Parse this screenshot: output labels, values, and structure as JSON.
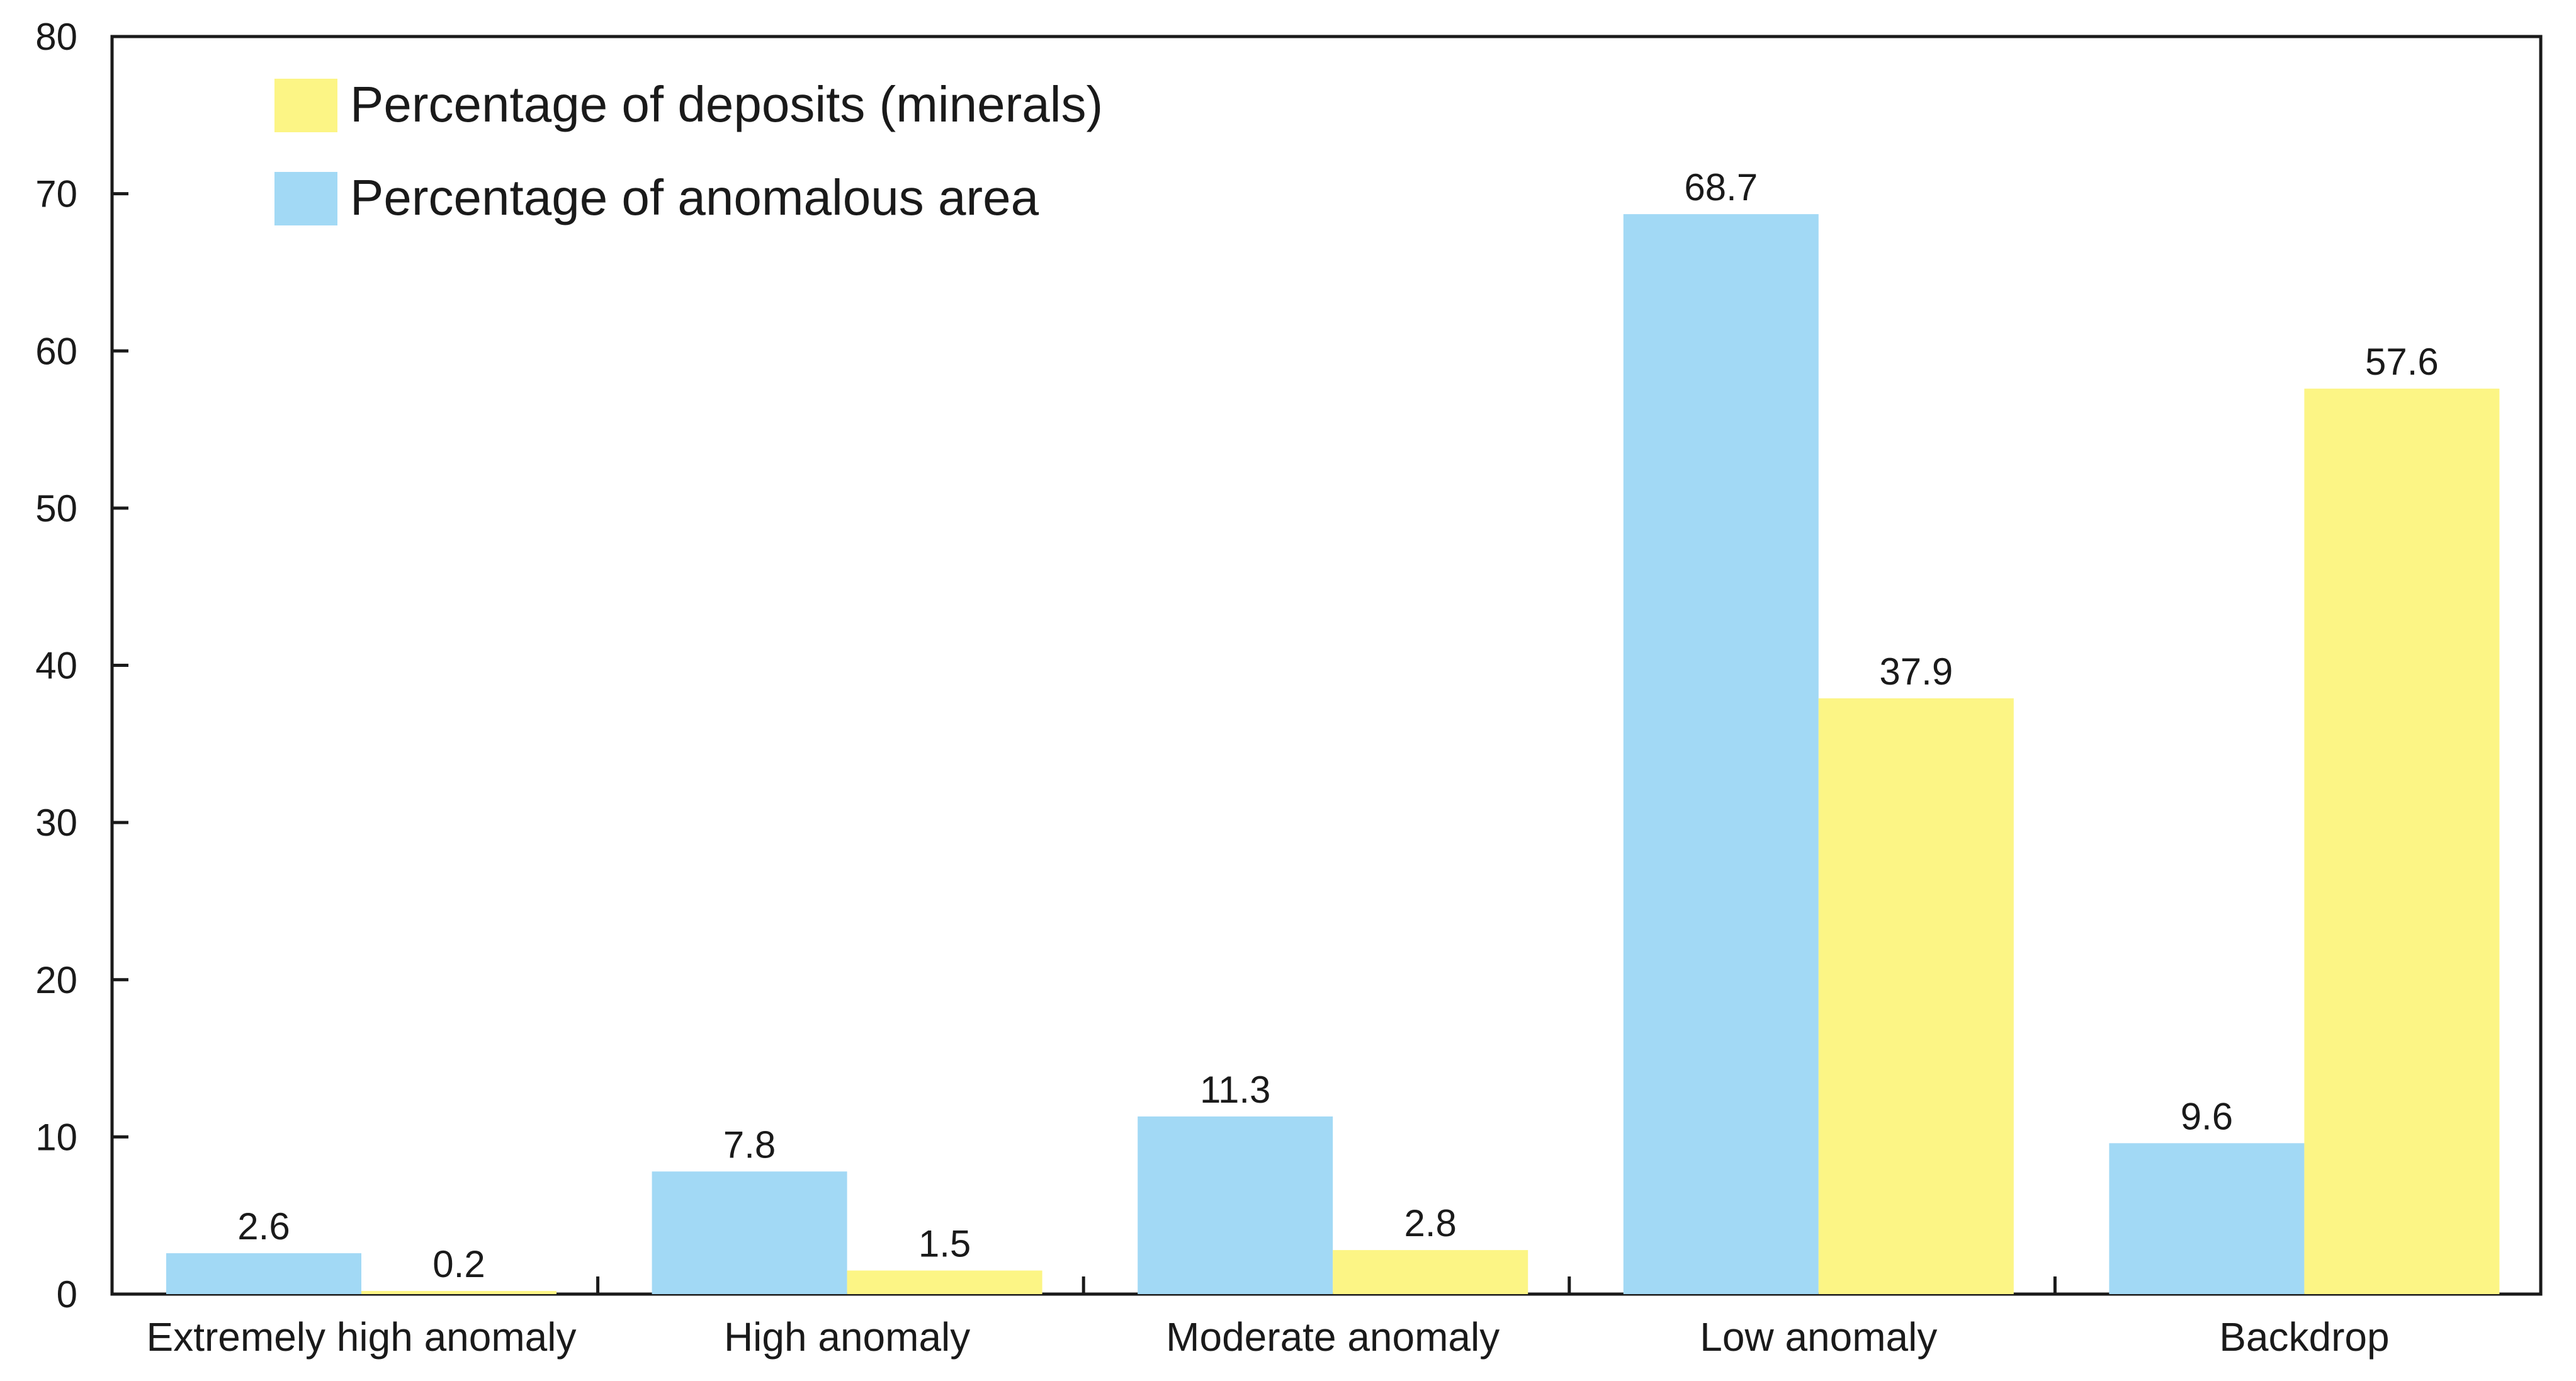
{
  "chart_data": {
    "type": "bar",
    "title": "",
    "xlabel": "",
    "ylabel": "",
    "ylim": [
      0,
      80
    ],
    "yticks": [
      0,
      10,
      20,
      30,
      40,
      50,
      60,
      70,
      80
    ],
    "categories": [
      "Extremely high anomaly",
      "High anomaly",
      "Moderate anomaly",
      "Low anomaly",
      "Backdrop"
    ],
    "series": [
      {
        "name": "Percentage of anomalous area",
        "color": "#a2d9f5",
        "values": [
          2.6,
          7.8,
          11.3,
          68.7,
          9.6
        ],
        "labels": [
          "2.6",
          "7.8",
          "11.3",
          "68.7",
          "9.6"
        ]
      },
      {
        "name": "Percentage of deposits (minerals)",
        "color": "#fcf585",
        "values": [
          0.2,
          1.5,
          2.8,
          37.9,
          57.6
        ],
        "labels": [
          "0.2",
          "1.5",
          "2.8",
          "37.9",
          "57.6"
        ]
      }
    ],
    "legend": {
      "position": "top-left",
      "order": [
        "Percentage of deposits (minerals)",
        "Percentage of anomalous area"
      ]
    },
    "grid": false
  }
}
